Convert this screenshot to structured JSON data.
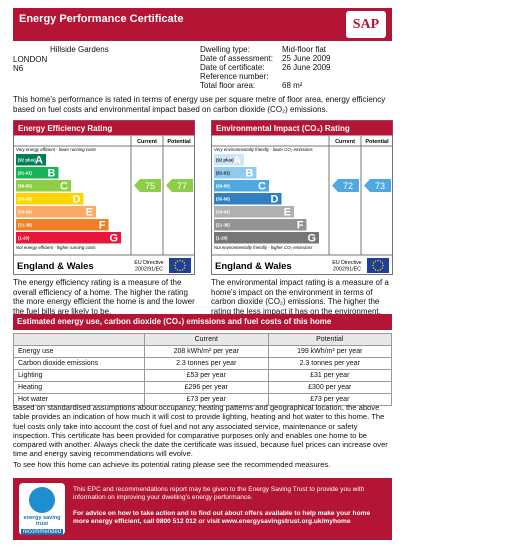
{
  "header": {
    "title": "Energy Performance Certificate",
    "logo": "SAP"
  },
  "address": {
    "lines": [
      "Hillside Gardens",
      "LONDON",
      "N6"
    ]
  },
  "details": [
    {
      "label": "Dwelling type:",
      "value": "Mid-floor flat"
    },
    {
      "label": "Date of assessment:",
      "value": "25 June 2009"
    },
    {
      "label": "Date of certificate:",
      "value": "26 June 2009"
    },
    {
      "label": "Reference number:"
    },
    {
      "label": "Total floor area:",
      "value": "68 m²"
    }
  ],
  "intro": "This home's performance is rated in terms of energy use per square metre of floor area, energy efficiency based on fuel costs and environmental impact based on carbon dioxide (CO₂) emissions.",
  "ratings": [
    {
      "title": "Energy Efficiency Rating",
      "columns": [
        "Current",
        "Potential"
      ],
      "top_note": "Very energy efficient - lower running costs",
      "bottom_note": "Not energy efficient - higher running costs",
      "bands": [
        {
          "range": "(92 plus)",
          "letter": "A",
          "color": "#008054"
        },
        {
          "range": "(81-91)",
          "letter": "B",
          "color": "#19b459"
        },
        {
          "range": "(69-80)",
          "letter": "C",
          "color": "#8dce46"
        },
        {
          "range": "(55-68)",
          "letter": "D",
          "color": "#ffd500"
        },
        {
          "range": "(39-54)",
          "letter": "E",
          "color": "#fcaa65"
        },
        {
          "range": "(21-38)",
          "letter": "F",
          "color": "#ef8023"
        },
        {
          "range": "(1-20)",
          "letter": "G",
          "color": "#e9153b"
        }
      ],
      "current": 75,
      "potential": 77,
      "region": "England & Wales",
      "directive": "EU Directive 2002/91/EC",
      "description": "The energy efficiency rating is a measure of the overall efficiency of a home. The higher the rating the more energy efficient the home is and the lower the fuel bills are likely to be."
    },
    {
      "title": "Environmental Impact (CO₂) Rating",
      "columns": [
        "Current",
        "Potential"
      ],
      "top_note": "Very environmentally friendly - lower CO₂ emissions",
      "bottom_note": "Not environmentally friendly - higher CO₂ emissions",
      "bands": [
        {
          "range": "(92 plus)",
          "letter": "A",
          "color": "#cde6f7"
        },
        {
          "range": "(81-91)",
          "letter": "B",
          "color": "#8fcbef"
        },
        {
          "range": "(69-80)",
          "letter": "C",
          "color": "#4fa9e0"
        },
        {
          "range": "(55-68)",
          "letter": "D",
          "color": "#2f7fc2"
        },
        {
          "range": "(39-54)",
          "letter": "E",
          "color": "#b0b0b0"
        },
        {
          "range": "(21-38)",
          "letter": "F",
          "color": "#939393"
        },
        {
          "range": "(1-20)",
          "letter": "G",
          "color": "#767676"
        }
      ],
      "current": 72,
      "potential": 73,
      "region": "England & Wales",
      "directive": "EU Directive 2002/91/EC",
      "description": "The environmental impact rating is a measure of a home's impact on the environment in terms of carbon dioxide (CO₂) emissions. The higher the rating the less impact it has on the environment."
    }
  ],
  "table": {
    "title": "Estimated energy use, carbon dioxide (CO₂) emissions and fuel costs of this home",
    "columns": [
      "Current",
      "Potential"
    ],
    "rows": [
      [
        "Energy use",
        "208 kWh/m² per year",
        "199 kWh/m² per year"
      ],
      [
        "Carbon dioxide emissions",
        "2.3 tonnes per year",
        "2.3 tonnes per year"
      ],
      [
        "Lighting",
        "£53 per year",
        "£31 per year"
      ],
      [
        "Heating",
        "£296 per year",
        "£300 per year"
      ],
      [
        "Hot water",
        "£73 per year",
        "£73 per year"
      ]
    ]
  },
  "notes": [
    "Based on standardised assumptions about occupancy, heating patterns and geographical location, the above table provides an indication of how much it will cost to provide lighting, heating and hot water to this home. The fuel costs only take into account the cost of fuel and not any associated service, maintenance or safety inspection. This certificate has been provided for comparative purposes only and enables one home to be compared with another. Always check the date the certificate was issued, because fuel prices can increase over time and energy saving recommendations will evolve.",
    "To see how this home can achieve its potential rating please see the recommended measures."
  ],
  "footer": {
    "logo": [
      "energy saving trust",
      "recommended"
    ],
    "text": [
      "This EPC and recommendations report may be given to the Energy Saving Trust to provide you with information on improving your dwelling's energy performance.",
      "For advice on how to take action and to find out about offers available to help make your home more energy efficient, call 0800 512 012 or visit www.energysavingstrust.org.uk/myhome"
    ]
  }
}
